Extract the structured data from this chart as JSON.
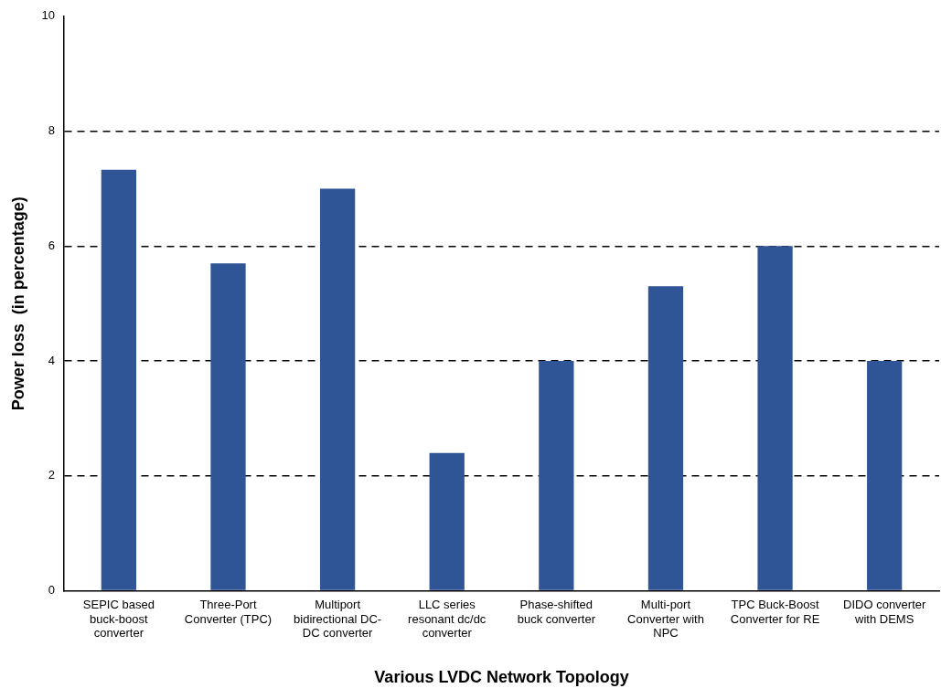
{
  "chart_data": {
    "type": "bar",
    "xlabel": "Various LVDC Network Topology",
    "ylabel": "Power loss  (in percentage)",
    "categories": [
      "SEPIC based\nbuck-boost\nconverter",
      "Three-Port\nConverter (TPC)",
      "Multiport\nbidirectional DC-\nDC converter",
      "LLC series\nresonant dc/dc\nconverter",
      "Phase-shifted\nbuck converter",
      "Multi-port\nConverter with\nNPC",
      "TPC Buck-Boost\nConverter for RE",
      "DIDO converter\nwith DEMS"
    ],
    "values": [
      7.33,
      5.7,
      7.0,
      2.4,
      4.0,
      5.3,
      6.0,
      4.0
    ],
    "color": "#2f5597",
    "ylim": [
      0,
      10
    ],
    "yticks": [
      0,
      2,
      4,
      6,
      8,
      10
    ],
    "grid": "y",
    "legend": false
  }
}
